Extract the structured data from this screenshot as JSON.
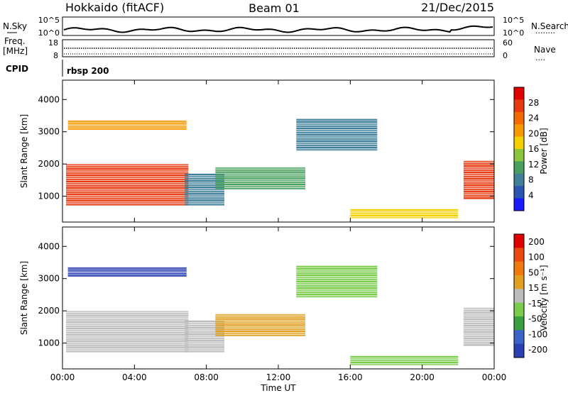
{
  "header": {
    "station": "Hokkaido (fitACF)",
    "beam": "Beam 01",
    "date": "21/Dec/2015"
  },
  "panels": {
    "nsky_label": "N.Sky",
    "nsearch_label": "N.Search",
    "freq_label": "Freq.",
    "freq_unit": "[MHz]",
    "nave_label": "Nave",
    "cpid_label": "CPID",
    "cpid_value": "rbsp 200",
    "nsky_ticks": [
      "10^5",
      "10^0"
    ],
    "nsearch_ticks": [
      "10^5",
      "10^0"
    ],
    "freq_ticks": [
      "18",
      "8"
    ],
    "nave_ticks": [
      "60",
      "0"
    ]
  },
  "colors": {
    "frame": "#000000",
    "power_scale": [
      "#1a1aff",
      "#2a55b0",
      "#3f7f99",
      "#4aa060",
      "#8cc63f",
      "#f5d000",
      "#f59a00",
      "#f26a00",
      "#e63a10",
      "#e00000"
    ],
    "velocity_scale": [
      "#2a3fb0",
      "#3a64c8",
      "#3aa040",
      "#7acc4a",
      "#bcbcbc",
      "#e0a020",
      "#f07a10",
      "#ea4a10",
      "#e00000"
    ]
  },
  "chart_data": [
    {
      "type": "heatmap",
      "title": "",
      "parameter": "Power",
      "xlabel": "Time UT",
      "ylabel": "Slant Range [km]",
      "xlim": [
        "00:00",
        "24:00"
      ],
      "ylim": [
        200,
        4600
      ],
      "x_tick_labels": [
        "00:00",
        "04:00",
        "08:00",
        "12:00",
        "16:00",
        "20:00",
        "00:00"
      ],
      "y_ticks": [
        1000,
        2000,
        3000,
        4000
      ],
      "y_tick_labels": [
        "1000",
        "2000",
        "3000",
        "4000"
      ],
      "colorbar": {
        "label": "Power [dB]",
        "ticks": [
          4,
          8,
          12,
          16,
          20,
          24,
          28
        ],
        "tick_labels": [
          "4",
          "8",
          "12",
          "16",
          "20",
          "24",
          "28"
        ],
        "range": [
          0,
          32
        ]
      },
      "regions": [
        {
          "t0": 0.2,
          "t1": 7.0,
          "r0": 700,
          "r1": 2000,
          "value": 26
        },
        {
          "t0": 0.3,
          "t1": 6.9,
          "r0": 3050,
          "r1": 3350,
          "value": 22
        },
        {
          "t0": 6.8,
          "t1": 9.0,
          "r0": 700,
          "r1": 1700,
          "value": 8
        },
        {
          "t0": 8.5,
          "t1": 13.5,
          "r0": 1200,
          "r1": 1900,
          "value": 10
        },
        {
          "t0": 13.0,
          "t1": 17.5,
          "r0": 2400,
          "r1": 3400,
          "value": 8
        },
        {
          "t0": 16.0,
          "t1": 22.0,
          "r0": 300,
          "r1": 600,
          "value": 18
        },
        {
          "t0": 22.3,
          "t1": 24.0,
          "r0": 900,
          "r1": 2100,
          "value": 26
        }
      ]
    },
    {
      "type": "heatmap",
      "title": "",
      "parameter": "Velocity",
      "xlabel": "Time UT",
      "ylabel": "Slant Range [km]",
      "xlim": [
        "00:00",
        "24:00"
      ],
      "ylim": [
        200,
        4600
      ],
      "x_tick_labels": [
        "00:00",
        "04:00",
        "08:00",
        "12:00",
        "16:00",
        "20:00",
        "00:00"
      ],
      "y_ticks": [
        1000,
        2000,
        3000,
        4000
      ],
      "y_tick_labels": [
        "1000",
        "2000",
        "3000",
        "4000"
      ],
      "colorbar": {
        "label": "Velocity [m s⁻¹]",
        "ticks": [
          200,
          100,
          50,
          15,
          -15,
          -50,
          -100,
          -200
        ],
        "tick_labels": [
          "200",
          "100",
          "50",
          "15",
          "-15",
          "-50",
          "-100",
          "-200"
        ],
        "range": [
          -250,
          250
        ]
      },
      "regions": [
        {
          "t0": 0.2,
          "t1": 7.0,
          "r0": 700,
          "r1": 2000,
          "value": 0
        },
        {
          "t0": 0.3,
          "t1": 6.9,
          "r0": 3050,
          "r1": 3350,
          "value": -220
        },
        {
          "t0": 6.8,
          "t1": 9.0,
          "r0": 700,
          "r1": 1700,
          "value": 0
        },
        {
          "t0": 8.5,
          "t1": 13.5,
          "r0": 1200,
          "r1": 1900,
          "value": 30
        },
        {
          "t0": 13.0,
          "t1": 17.5,
          "r0": 2400,
          "r1": 3400,
          "value": -30
        },
        {
          "t0": 16.0,
          "t1": 22.0,
          "r0": 300,
          "r1": 600,
          "value": -60
        },
        {
          "t0": 22.3,
          "t1": 24.0,
          "r0": 900,
          "r1": 2100,
          "value": 10
        }
      ]
    }
  ]
}
